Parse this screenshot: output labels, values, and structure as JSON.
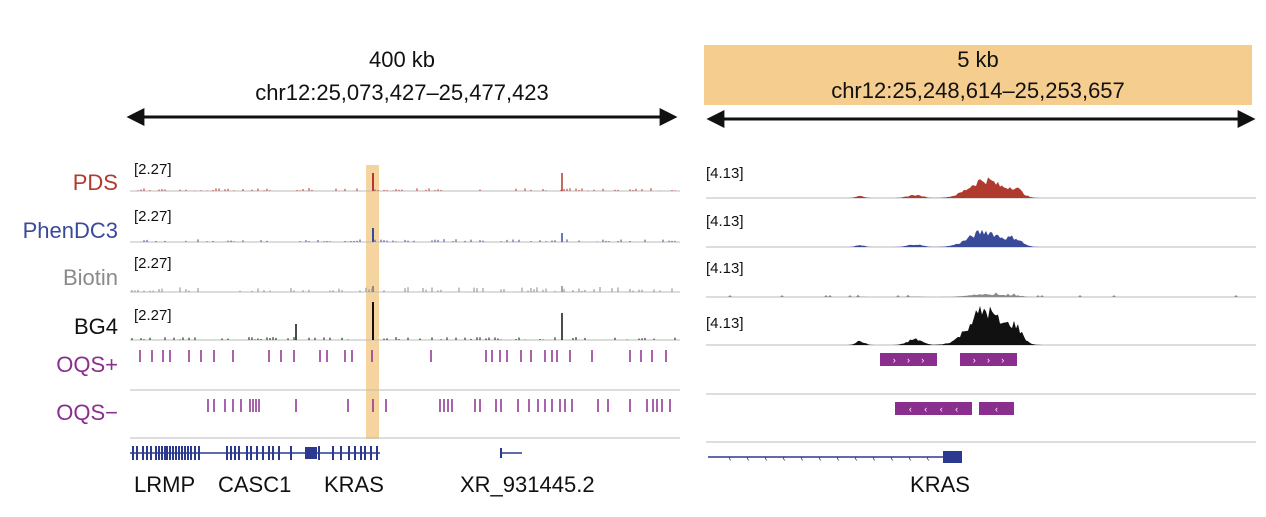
{
  "left_panel": {
    "width_label": "400 kb",
    "coords": "chr12:25,073,427–25,477,423"
  },
  "right_panel": {
    "width_label": "5 kb",
    "coords": "chr12:25,248,614–25,253,657"
  },
  "tracks": [
    {
      "name": "PDS",
      "color": "#b03a2e",
      "left_scale": "[2.27]",
      "right_scale": "[4.13]"
    },
    {
      "name": "PhenDC3",
      "color": "#3a4a9a",
      "left_scale": "[2.27]",
      "right_scale": "[4.13]"
    },
    {
      "name": "Biotin",
      "color": "#8a8a8a",
      "left_scale": "[2.27]",
      "right_scale": "[4.13]"
    },
    {
      "name": "BG4",
      "color": "#111111",
      "left_scale": "[2.27]",
      "right_scale": "[4.13]"
    }
  ],
  "oqs_tracks": [
    {
      "name": "OQS+",
      "color": "#8b2f8f"
    },
    {
      "name": "OQS−",
      "color": "#8b2f8f"
    }
  ],
  "genes_left": [
    "LRMP",
    "CASC1",
    "KRAS",
    "XR_931445.2"
  ],
  "genes_right": [
    "KRAS"
  ],
  "colors": {
    "highlight": "#f5cd8e",
    "gene_model": "#2b3a8f",
    "baseline": "#bbbbbb"
  }
}
